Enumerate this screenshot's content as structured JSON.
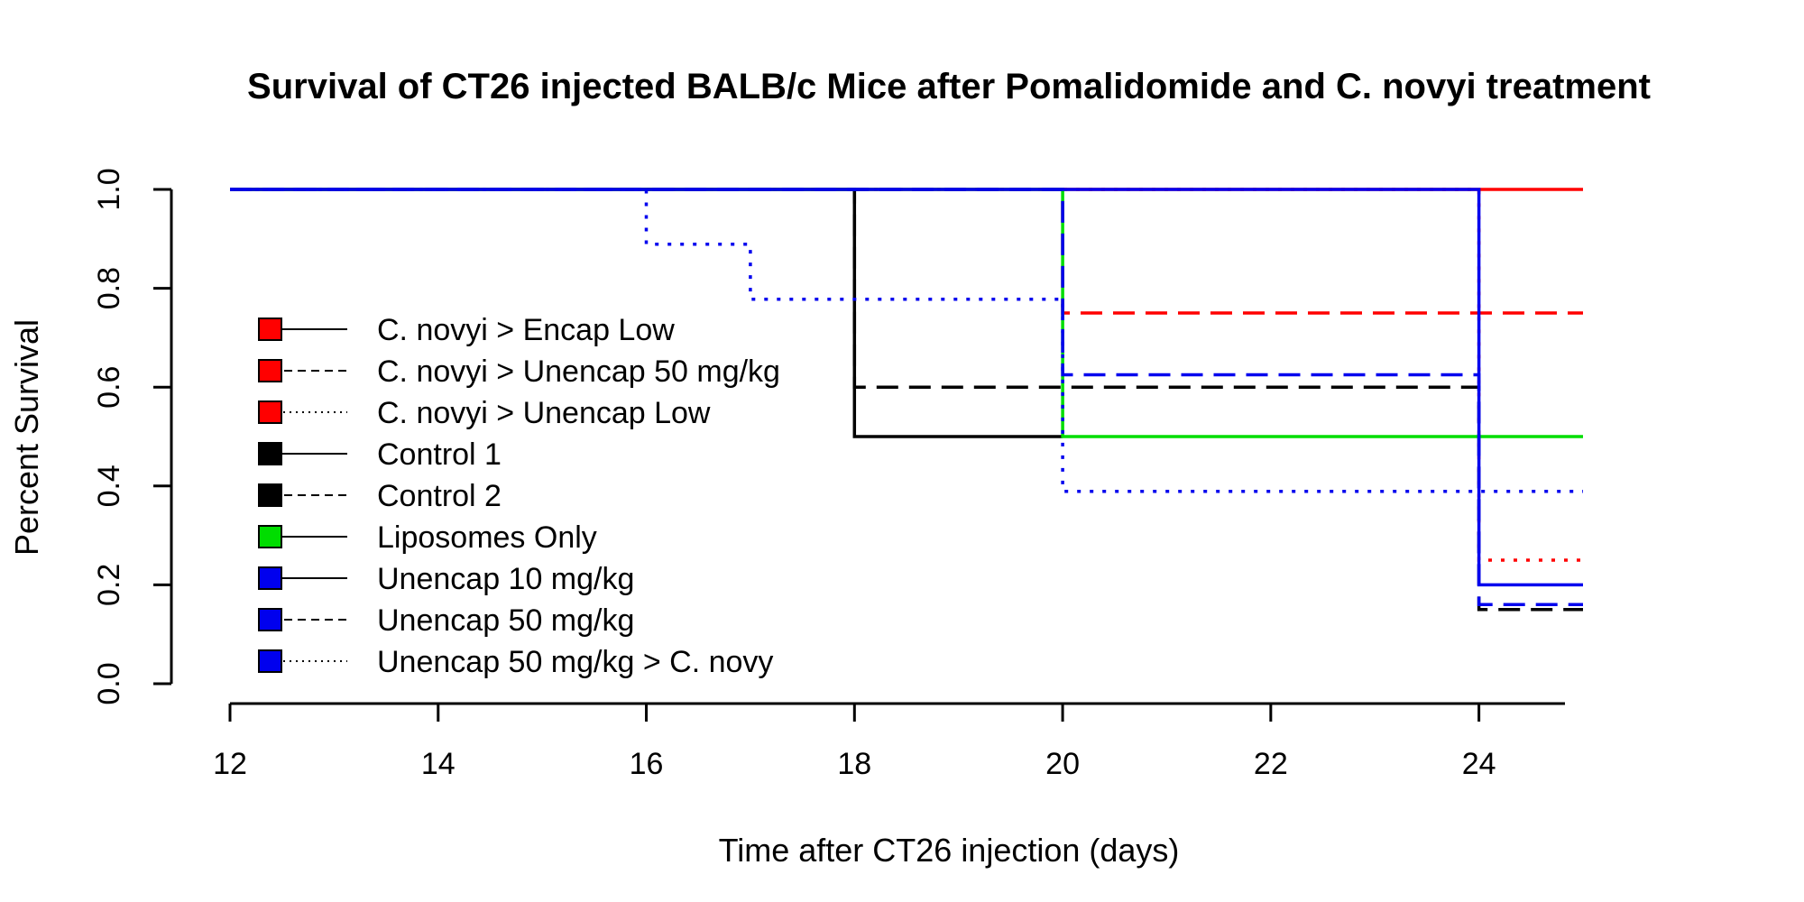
{
  "chart_data": {
    "type": "line",
    "step": true,
    "title": "Survival of CT26 injected BALB/c Mice after Pomalidomide and C. novyi treatment",
    "xlabel": "Time after CT26 injection (days)",
    "ylabel": "Percent Survival",
    "xlim": [
      11.5,
      25.5
    ],
    "ylim": [
      0,
      1
    ],
    "xticks": [
      12,
      14,
      16,
      18,
      20,
      22,
      24
    ],
    "yticks": [
      0.0,
      0.2,
      0.4,
      0.6,
      0.8,
      1.0
    ],
    "xtick_labels": [
      "12",
      "14",
      "16",
      "18",
      "20",
      "22",
      "24"
    ],
    "ytick_labels": [
      "0.0",
      "0.2",
      "0.4",
      "0.6",
      "0.8",
      "1.0"
    ],
    "grid": false,
    "legend_position": "left",
    "series": [
      {
        "name": "C. novyi > Encap Low",
        "color": "#ff0000",
        "dash": "solid",
        "points": [
          [
            12,
            1.0
          ],
          [
            25,
            1.0
          ]
        ]
      },
      {
        "name": "C. novyi > Unencap 50 mg/kg",
        "color": "#ff0000",
        "dash": "dashed",
        "points": [
          [
            12,
            1.0
          ],
          [
            20,
            1.0
          ],
          [
            20,
            0.75
          ],
          [
            25,
            0.75
          ]
        ]
      },
      {
        "name": "C. novyi > Unencap Low",
        "color": "#ff0000",
        "dash": "dotted",
        "points": [
          [
            12,
            1.0
          ],
          [
            24,
            1.0
          ],
          [
            24,
            0.25
          ],
          [
            25,
            0.25
          ]
        ]
      },
      {
        "name": "Control 1",
        "color": "#000000",
        "dash": "solid",
        "points": [
          [
            12,
            1.0
          ],
          [
            18,
            1.0
          ],
          [
            18,
            0.5
          ],
          [
            20,
            0.5
          ]
        ]
      },
      {
        "name": "Control 2",
        "color": "#000000",
        "dash": "dashed",
        "points": [
          [
            12,
            1.0
          ],
          [
            18,
            1.0
          ],
          [
            18,
            0.6
          ],
          [
            24,
            0.6
          ],
          [
            24,
            0.15
          ],
          [
            25,
            0.15
          ]
        ]
      },
      {
        "name": "Liposomes Only",
        "color": "#00dd00",
        "dash": "solid",
        "points": [
          [
            12,
            1.0
          ],
          [
            20,
            1.0
          ],
          [
            20,
            0.5
          ],
          [
            25,
            0.5
          ]
        ]
      },
      {
        "name": "Unencap 10 mg/kg",
        "color": "#0000ee",
        "dash": "solid",
        "points": [
          [
            12,
            1.0
          ],
          [
            24,
            1.0
          ],
          [
            24,
            0.2
          ],
          [
            25,
            0.2
          ]
        ]
      },
      {
        "name": "Unencap 50 mg/kg",
        "color": "#0000ee",
        "dash": "dashed",
        "points": [
          [
            12,
            1.0
          ],
          [
            20,
            1.0
          ],
          [
            20,
            0.625
          ],
          [
            24,
            0.625
          ],
          [
            24,
            0.16
          ],
          [
            25,
            0.16
          ]
        ]
      },
      {
        "name": "Unencap 50 mg/kg > C. novy",
        "color": "#0000ee",
        "dash": "dotted",
        "points": [
          [
            12,
            1.0
          ],
          [
            16,
            1.0
          ],
          [
            16,
            0.889
          ],
          [
            17,
            0.889
          ],
          [
            17,
            0.778
          ],
          [
            20,
            0.778
          ],
          [
            20,
            0.389
          ],
          [
            25,
            0.389
          ]
        ]
      }
    ]
  }
}
